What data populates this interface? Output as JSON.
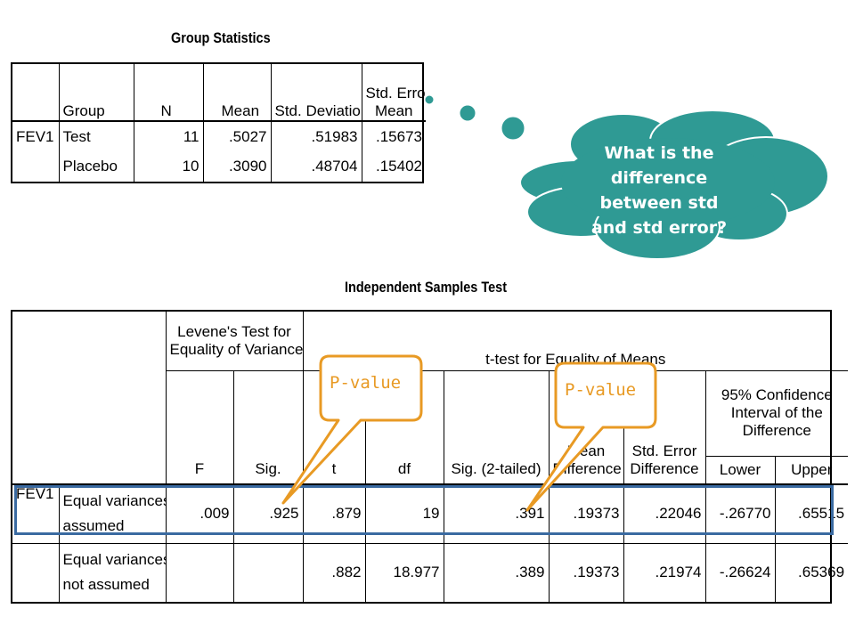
{
  "group_statistics": {
    "title": "Group Statistics",
    "headers": {
      "group": "Group",
      "n": "N",
      "mean": "Mean",
      "std_dev": "Std. Deviation",
      "std_err_line1": "Std. Error",
      "std_err_line2": "Mean"
    },
    "variable": "FEV1",
    "rows": [
      {
        "group": "Test",
        "n": "11",
        "mean": ".5027",
        "std_dev": ".51983",
        "std_err": ".15673"
      },
      {
        "group": "Placebo",
        "n": "10",
        "mean": ".3090",
        "std_dev": ".48704",
        "std_err": ".15402"
      }
    ]
  },
  "independent_samples_test": {
    "title": "Independent Samples Test",
    "levene_header_line1": "Levene's Test for",
    "levene_header_line2": "Equality of Variances",
    "ttest_header": "t-test for Equality of Means",
    "ci_header_line1": "95% Confidence",
    "ci_header_line2": "Interval of the",
    "ci_header_line3": "Difference",
    "columns": {
      "f": "F",
      "sig": "Sig.",
      "t": "t",
      "df": "df",
      "sig2": "Sig. (2-tailed)",
      "mean_diff_line1": "Mean",
      "mean_diff_line2": "Difference",
      "se_diff_line1": "Std. Error",
      "se_diff_line2": "Difference",
      "lower": "Lower",
      "upper": "Upper"
    },
    "variable": "FEV1",
    "rows": [
      {
        "label_line1": "Equal variances",
        "label_line2": "assumed",
        "f": ".009",
        "sig": ".925",
        "t": ".879",
        "df": "19",
        "sig2": ".391",
        "mean_diff": ".19373",
        "se_diff": ".22046",
        "lower": "-.26770",
        "upper": ".65515"
      },
      {
        "label_line1": "Equal variances",
        "label_line2": "not assumed",
        "f": "",
        "sig": "",
        "t": ".882",
        "df": "18.977",
        "sig2": ".389",
        "mean_diff": ".19373",
        "se_diff": ".21974",
        "lower": "-.26624",
        "upper": ".65369"
      }
    ]
  },
  "callouts": {
    "left": "P-value",
    "right": "P-value"
  },
  "thought_cloud": {
    "line1": "What is the",
    "line2": "difference",
    "line3": "between std",
    "line4": "and std error?"
  },
  "colors": {
    "cloud": "#2f9a94",
    "callout": "#e89a24",
    "highlight": "#3a6aa1"
  }
}
